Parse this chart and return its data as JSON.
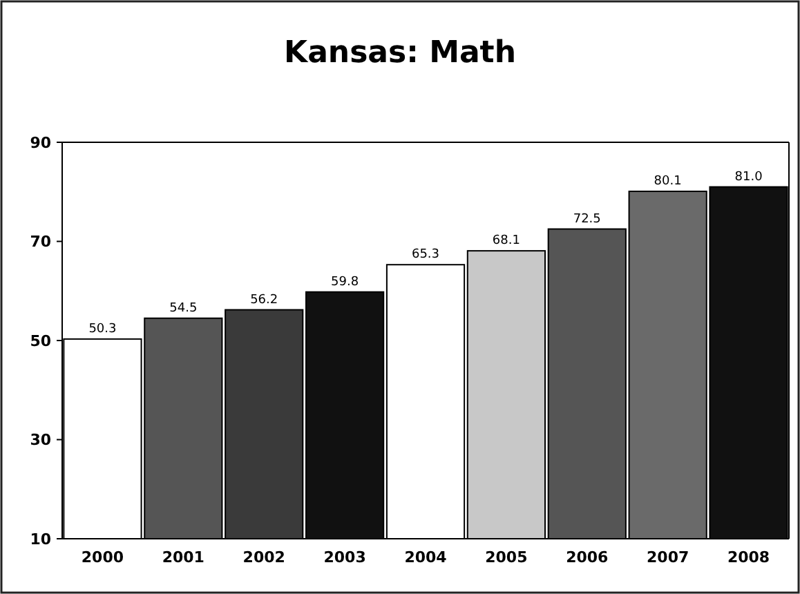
{
  "chart_data": {
    "type": "bar",
    "title": "Kansas: Math",
    "categories": [
      "2000",
      "2001",
      "2002",
      "2003",
      "2004",
      "2005",
      "2006",
      "2007",
      "2008"
    ],
    "values": [
      50.3,
      54.5,
      56.2,
      59.8,
      65.3,
      68.1,
      72.5,
      80.1,
      81.0
    ],
    "value_labels": [
      "50.3",
      "54.5",
      "56.2",
      "59.8",
      "65.3",
      "68.1",
      "72.5",
      "80.1",
      "81.0"
    ],
    "colors": [
      "#ffffff",
      "#555555",
      "#3a3a3a",
      "#111111",
      "#ffffff",
      "#c8c8c8",
      "#555555",
      "#6a6a6a",
      "#111111"
    ],
    "ylim": [
      10,
      90
    ],
    "yticks": [
      10,
      30,
      50,
      70,
      90
    ],
    "grid": false
  }
}
